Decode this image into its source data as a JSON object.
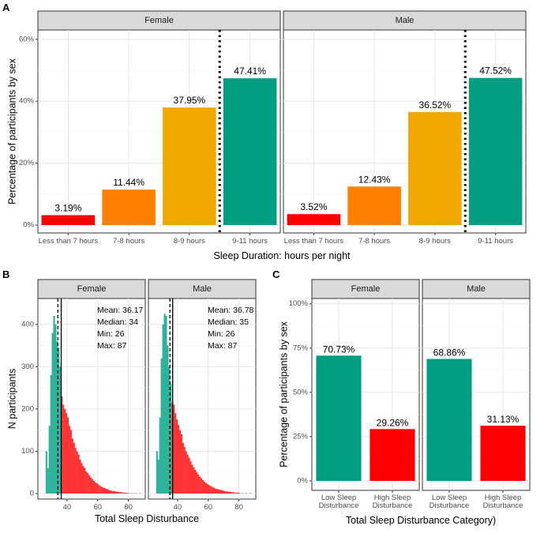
{
  "chart_data": [
    {
      "panel": "A",
      "type": "bar",
      "facets": [
        "Female",
        "Male"
      ],
      "categories": [
        "Less than 7 hours",
        "7-8 hours",
        "8-9 hours",
        "9-11 hours"
      ],
      "colors": [
        "#ff0000",
        "#ff8000",
        "#f0a800",
        "#009e80"
      ],
      "series": [
        {
          "name": "Female",
          "values": [
            3.19,
            11.44,
            37.95,
            47.41
          ],
          "labels": [
            "3.19%",
            "11.44%",
            "37.95%",
            "47.41%"
          ]
        },
        {
          "name": "Male",
          "values": [
            3.52,
            12.43,
            36.52,
            47.52
          ],
          "labels": [
            "3.52%",
            "12.43%",
            "36.52%",
            "47.52%"
          ]
        }
      ],
      "ylim": [
        0,
        63
      ],
      "yticks": [
        0,
        20,
        40,
        60
      ],
      "ytick_labels": [
        "0%",
        "20%",
        "40%",
        "60%"
      ],
      "xlabel": "Sleep Duration: hours per night",
      "ylabel": "Percentage of participants by sex"
    },
    {
      "panel": "B",
      "type": "histogram",
      "facets": [
        "Female",
        "Male"
      ],
      "xlim": [
        22,
        90
      ],
      "xticks": [
        40,
        60,
        80
      ],
      "xtick_labels": [
        "40",
        "60",
        "80"
      ],
      "ylim": [
        0,
        450
      ],
      "yticks": [
        0,
        100,
        200,
        300,
        400
      ],
      "ytick_labels": [
        "0",
        "100",
        "200",
        "300",
        "400"
      ],
      "colors": {
        "low": "#2db39a",
        "high": "#ff3333"
      },
      "threshold": 36,
      "series": [
        {
          "name": "Female",
          "mean": 36.17,
          "median": 34,
          "bins": [
            [
              26,
              100
            ],
            [
              27,
              60
            ],
            [
              28,
              160
            ],
            [
              29,
              280
            ],
            [
              30,
              380
            ],
            [
              31,
              420
            ],
            [
              32,
              400
            ],
            [
              33,
              360
            ],
            [
              34,
              345
            ],
            [
              35,
              300
            ],
            [
              36,
              230
            ],
            [
              37,
              210
            ],
            [
              38,
              200
            ],
            [
              39,
              190
            ],
            [
              40,
              180
            ],
            [
              41,
              160
            ],
            [
              42,
              150
            ],
            [
              43,
              130
            ],
            [
              44,
              120
            ],
            [
              45,
              108
            ],
            [
              46,
              100
            ],
            [
              47,
              92
            ],
            [
              48,
              80
            ],
            [
              49,
              72
            ],
            [
              50,
              65
            ],
            [
              51,
              60
            ],
            [
              52,
              52
            ],
            [
              53,
              48
            ],
            [
              54,
              43
            ],
            [
              55,
              38
            ],
            [
              56,
              34
            ],
            [
              57,
              30
            ],
            [
              58,
              26
            ],
            [
              59,
              24
            ],
            [
              60,
              21
            ],
            [
              61,
              18
            ],
            [
              62,
              16
            ],
            [
              63,
              14
            ],
            [
              64,
              13
            ],
            [
              65,
              11
            ],
            [
              66,
              10
            ],
            [
              67,
              8
            ],
            [
              68,
              7
            ],
            [
              69,
              6
            ],
            [
              70,
              6
            ],
            [
              71,
              5
            ],
            [
              72,
              4
            ],
            [
              73,
              4
            ],
            [
              74,
              3
            ],
            [
              75,
              3
            ],
            [
              76,
              2
            ],
            [
              77,
              2
            ],
            [
              78,
              2
            ],
            [
              79,
              1
            ],
            [
              80,
              1
            ],
            [
              82,
              1
            ],
            [
              84,
              1
            ],
            [
              87,
              1
            ]
          ],
          "stats": [
            "Mean: 36.17",
            "Median: 34",
            "Min: 26",
            "Max: 87"
          ]
        },
        {
          "name": "Male",
          "mean": 36.78,
          "median": 35,
          "bins": [
            [
              26,
              100
            ],
            [
              27,
              80
            ],
            [
              28,
              180
            ],
            [
              29,
              320
            ],
            [
              30,
              400
            ],
            [
              31,
              425
            ],
            [
              32,
              420
            ],
            [
              33,
              350
            ],
            [
              34,
              300
            ],
            [
              35,
              260
            ],
            [
              36,
              215
            ],
            [
              37,
              210
            ],
            [
              38,
              190
            ],
            [
              39,
              175
            ],
            [
              40,
              162
            ],
            [
              41,
              150
            ],
            [
              42,
              140
            ],
            [
              43,
              120
            ],
            [
              44,
              110
            ],
            [
              45,
              100
            ],
            [
              46,
              92
            ],
            [
              47,
              85
            ],
            [
              48,
              76
            ],
            [
              49,
              68
            ],
            [
              50,
              62
            ],
            [
              51,
              56
            ],
            [
              52,
              50
            ],
            [
              53,
              45
            ],
            [
              54,
              40
            ],
            [
              55,
              36
            ],
            [
              56,
              32
            ],
            [
              57,
              28
            ],
            [
              58,
              25
            ],
            [
              59,
              22
            ],
            [
              60,
              20
            ],
            [
              61,
              18
            ],
            [
              62,
              16
            ],
            [
              63,
              14
            ],
            [
              64,
              12
            ],
            [
              65,
              11
            ],
            [
              66,
              10
            ],
            [
              67,
              9
            ],
            [
              68,
              8
            ],
            [
              69,
              7
            ],
            [
              70,
              6
            ],
            [
              71,
              5
            ],
            [
              72,
              5
            ],
            [
              73,
              4
            ],
            [
              74,
              4
            ],
            [
              75,
              3
            ],
            [
              76,
              3
            ],
            [
              77,
              2
            ],
            [
              78,
              2
            ],
            [
              79,
              2
            ],
            [
              80,
              1
            ],
            [
              82,
              1
            ],
            [
              84,
              1
            ],
            [
              87,
              1
            ]
          ],
          "stats": [
            "Mean: 36.78",
            "Median: 35",
            "Min: 26",
            "Max: 87"
          ]
        }
      ],
      "xlabel": "Total Sleep Disturbance",
      "ylabel": "N participants"
    },
    {
      "panel": "C",
      "type": "bar",
      "facets": [
        "Female",
        "Male"
      ],
      "categories": [
        [
          "Low Sleep",
          "Disturbance"
        ],
        [
          "High Sleep",
          "Disturbance"
        ]
      ],
      "colors": [
        "#009e80",
        "#ff0000"
      ],
      "series": [
        {
          "name": "Female",
          "values": [
            70.73,
            29.26
          ],
          "labels": [
            "70.73%",
            "29.26%"
          ]
        },
        {
          "name": "Male",
          "values": [
            68.86,
            31.13
          ],
          "labels": [
            "68.86%",
            "31.13%"
          ]
        }
      ],
      "ylim": [
        0,
        103
      ],
      "yticks": [
        0,
        25,
        50,
        75,
        100
      ],
      "ytick_labels": [
        "0%",
        "25%",
        "50%",
        "75%",
        "100%"
      ],
      "xlabel": "Total Sleep Disturbance Category)",
      "ylabel": "Percentage of participants by sex"
    }
  ]
}
